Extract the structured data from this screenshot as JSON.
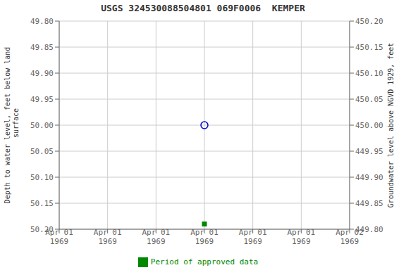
{
  "chart_data": {
    "type": "scatter",
    "title": "USGS 324530088504801 069F0006  KEMPER",
    "ylabel": "Depth to water level, feet below land\n surface",
    "y2label": "Groundwater level above NGVD 1929, feet",
    "categories": [
      "Apr 01\n1969",
      "Apr 01\n1969",
      "Apr 01\n1969",
      "Apr 01\n1969",
      "Apr 01\n1969",
      "Apr 01\n1969",
      "Apr 02\n1969"
    ],
    "series": [
      {
        "color": "#0000cc",
        "marker": "open_circle",
        "values": [
          null,
          null,
          null,
          50.0,
          null,
          null,
          null
        ]
      },
      {
        "name": "Period of approved data",
        "color": "#008800",
        "marker": "square",
        "values": [
          null,
          null,
          null,
          50.19,
          null,
          null,
          null
        ]
      }
    ],
    "ylim": [
      50.2,
      49.8
    ],
    "yticks": [
      {
        "value": 49.8,
        "label": "49.80"
      },
      49.85,
      {
        "value": 49.9,
        "label": "49.90"
      },
      49.95,
      {
        "value": 50.0,
        "label": "50.00"
      },
      50.05,
      {
        "value": 50.1,
        "label": "50.10"
      },
      50.15,
      {
        "value": 50.2,
        "label": "50.20"
      }
    ],
    "y2lim": [
      449.8,
      450.2
    ],
    "y2ticks": [
      {
        "value": 450.2,
        "label": "450.20"
      },
      450.15,
      {
        "value": 450.1,
        "label": "450.10"
      },
      450.05,
      {
        "value": 450.0,
        "label": "450.00"
      },
      449.95,
      {
        "value": 449.9,
        "label": "449.90"
      },
      449.85,
      {
        "value": 449.8,
        "label": "449.80"
      }
    ],
    "grid": true,
    "legend": "bottom"
  }
}
